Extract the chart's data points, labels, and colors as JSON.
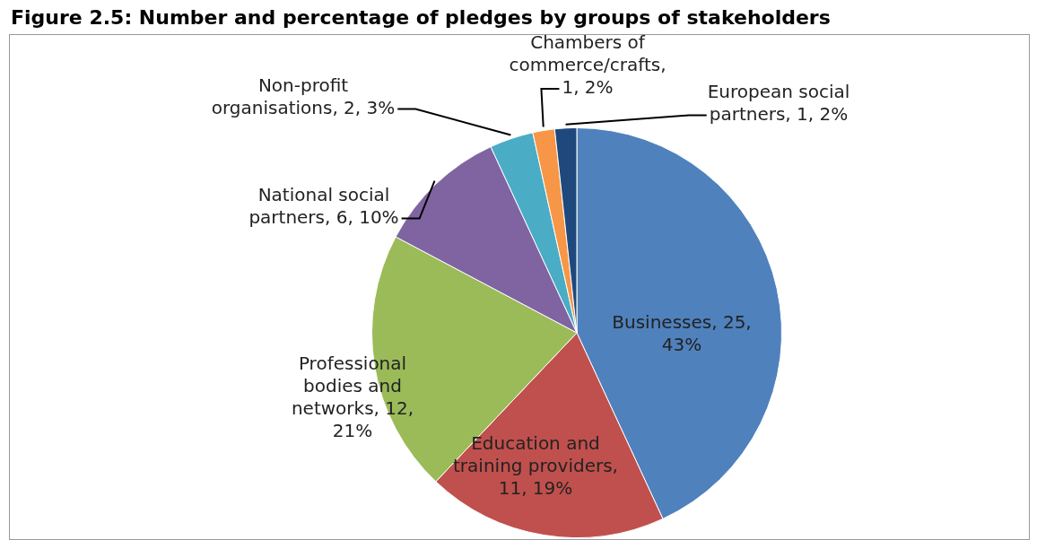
{
  "chart_data": {
    "type": "pie",
    "title": "Figure 2.5: Number and percentage of pledges by groups of stakeholders",
    "categories": [
      "Businesses, 25, 43%",
      "Education and training providers, 11, 19%",
      "Professional bodies and networks, 12, 21%",
      "National social partners, 6, 10%",
      "Non-profit organisations, 2, 3%",
      "Chambers of commerce/crafts, 1, 2%",
      "European social partners, 1, 2%"
    ],
    "values": [
      25,
      11,
      12,
      6,
      2,
      1,
      1
    ],
    "colors": [
      "#4f81bd",
      "#c0504d",
      "#9bbb59",
      "#8064a2",
      "#4bacc6",
      "#f79646",
      "#1f497d"
    ],
    "legend": false
  }
}
